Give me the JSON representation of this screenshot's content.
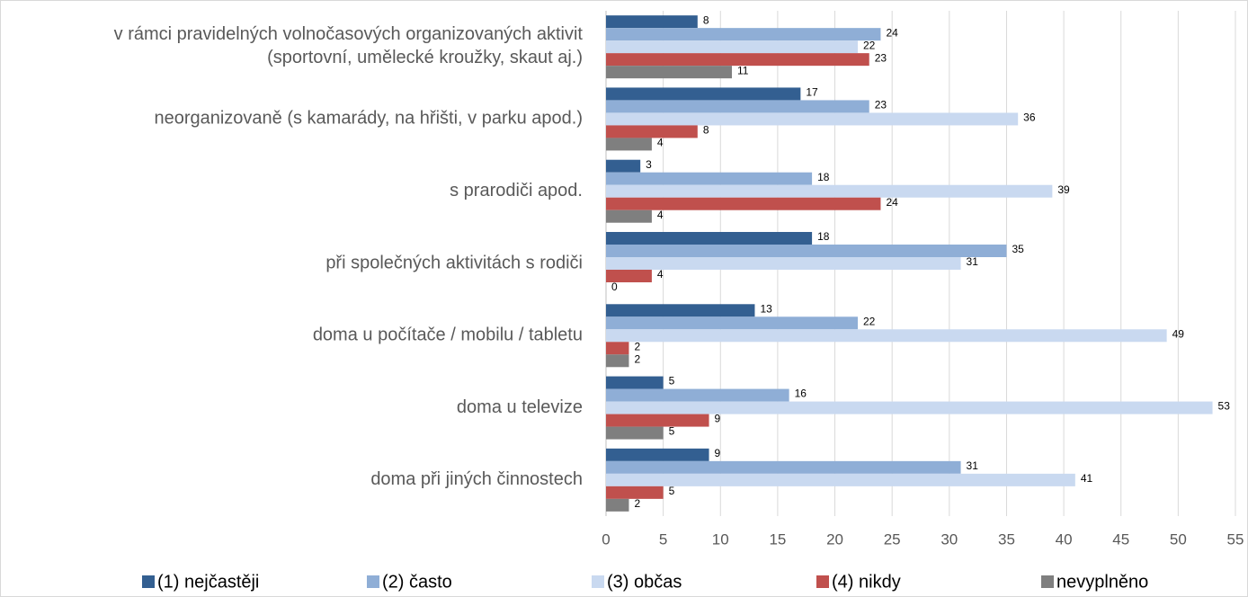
{
  "chart_data": {
    "type": "bar",
    "orientation": "horizontal",
    "categories": [
      "v rámci pravidelných volnočasových organizovaných aktivit\n(sportovní, umělecké kroužky, skaut aj.)",
      "neorganizovaně (s kamarády, na hřišti, v parku apod.)",
      "s prarodiči apod.",
      "při společných aktivitách s rodiči",
      "doma u počítače / mobilu / tabletu",
      "doma u televize",
      "doma při jiných činnostech"
    ],
    "series": [
      {
        "name": "(1) nejčastěji",
        "color": "#335f91",
        "values": [
          8,
          17,
          3,
          18,
          13,
          5,
          9
        ]
      },
      {
        "name": "(2) často",
        "color": "#8faed6",
        "values": [
          24,
          23,
          18,
          35,
          22,
          16,
          31
        ]
      },
      {
        "name": "(3) občas",
        "color": "#c9d9f0",
        "values": [
          22,
          36,
          39,
          31,
          49,
          53,
          41
        ]
      },
      {
        "name": "(4) nikdy",
        "color": "#c0504d",
        "values": [
          23,
          8,
          24,
          4,
          2,
          9,
          5
        ]
      },
      {
        "name": "nevyplněno",
        "color": "#7f7f7f",
        "values": [
          11,
          4,
          4,
          0,
          2,
          5,
          2
        ]
      }
    ],
    "xlim": [
      0,
      55
    ],
    "xticks": [
      0,
      5,
      10,
      15,
      20,
      25,
      30,
      35,
      40,
      45,
      50,
      55
    ],
    "grid": true,
    "legend": "bottom"
  }
}
